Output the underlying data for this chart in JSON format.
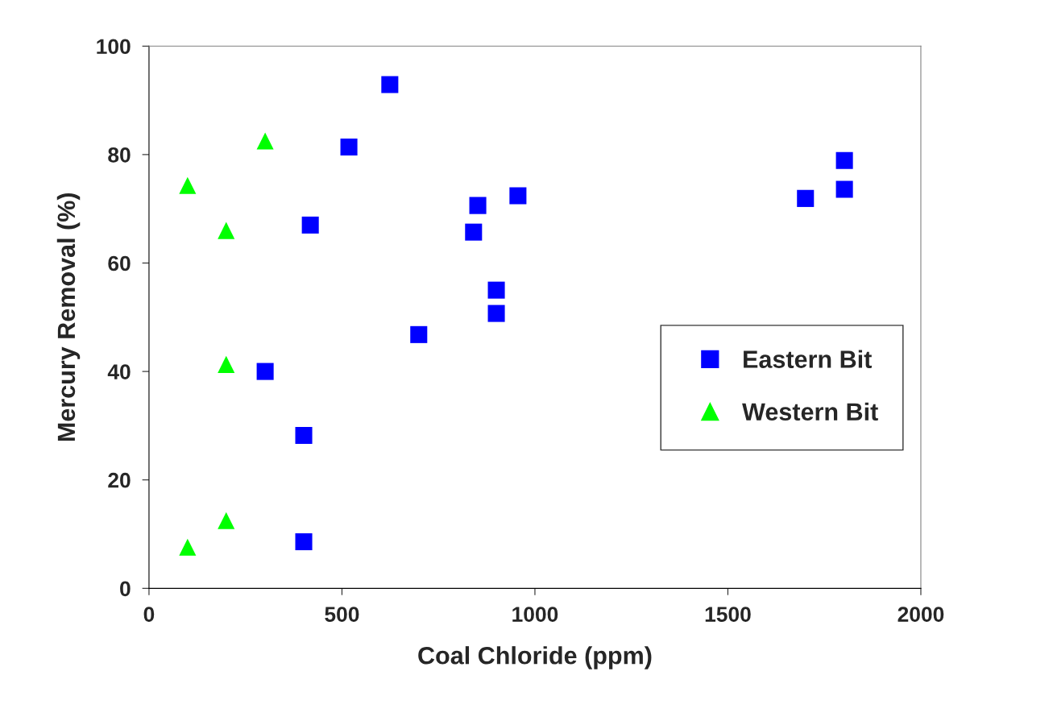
{
  "chart_data": {
    "type": "scatter",
    "xlabel": "Coal Chloride (ppm)",
    "ylabel": "Mercury Removal (%)",
    "xlim": [
      0,
      2000
    ],
    "xticks": [
      0,
      500,
      1000,
      1500,
      2000
    ],
    "ylim": [
      0,
      100
    ],
    "yticks": [
      0,
      20,
      40,
      60,
      80,
      100
    ],
    "grid": false,
    "legend": "right",
    "series": [
      {
        "name": "Eastern Bit",
        "color": "#0000ff",
        "marker": "square",
        "x": [
          624,
          518,
          418,
          852,
          841,
          956,
          900,
          900,
          699,
          301,
          401,
          401,
          1701,
          1802,
          1802
        ],
        "values": [
          92.9,
          81.4,
          67.0,
          70.6,
          65.7,
          72.4,
          55.0,
          50.7,
          46.8,
          40.0,
          28.2,
          8.6,
          71.9,
          78.9,
          73.6
        ]
      },
      {
        "name": "Western Bit",
        "color": "#00ff00",
        "marker": "triangle",
        "x": [
          100,
          301,
          200,
          200,
          200,
          100
        ],
        "values": [
          74.3,
          82.5,
          66.0,
          41.3,
          12.5,
          7.6
        ]
      }
    ]
  }
}
